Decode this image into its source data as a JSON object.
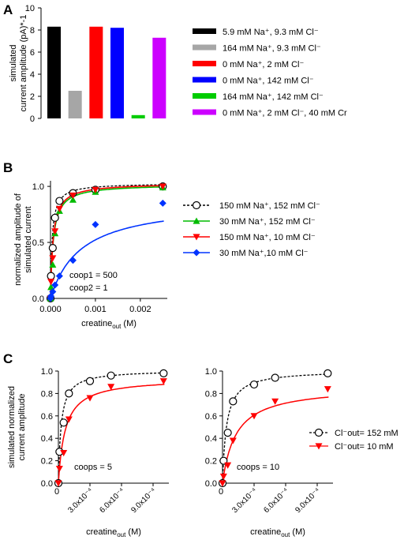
{
  "panels": {
    "a": {
      "letter": "A"
    },
    "b": {
      "letter": "B",
      "annotations": [
        "coop1 = 500",
        "coop2 = 1"
      ]
    },
    "c": {
      "letter": "C",
      "annotations": [
        "coops = 5",
        "coops = 10"
      ]
    }
  },
  "chart_data": [
    {
      "panel": "A",
      "type": "bar",
      "ylabel": [
        "simulated",
        "current amplitude (pA)*-1"
      ],
      "ylim": [
        0,
        10
      ],
      "yticks": [
        0,
        2,
        4,
        6,
        8,
        10
      ],
      "legend_position": "right",
      "series": [
        {
          "name": "5.9 mM Na⁺, 9.3 mM Cl⁻",
          "value": 8.3,
          "color": "#000000"
        },
        {
          "name": "164 mM Na⁺, 9.3 mM Cl⁻",
          "value": 2.5,
          "color": "#a6a6a6"
        },
        {
          "name": "0 mM Na⁺, 2 mM Cl⁻",
          "value": 8.3,
          "color": "#ff0000"
        },
        {
          "name": "0 mM Na⁺, 142 mM Cl⁻",
          "value": 8.2,
          "color": "#0000ff"
        },
        {
          "name": "164 mM Na⁺, 142 mM Cl⁻",
          "value": 0.3,
          "color": "#00cc00"
        },
        {
          "name": "0 mM Na⁺, 2 mM Cl⁻, 40 mM Cr",
          "value": 7.3,
          "color": "#cc00ff"
        }
      ]
    },
    {
      "panel": "B",
      "type": "line",
      "xlabel": "creatine_out (M)",
      "ylabel": [
        "normalized amplitude of",
        "simulated current"
      ],
      "xlim": [
        0,
        0.0026
      ],
      "ylim": [
        0,
        1.05
      ],
      "xticks": [
        0,
        0.001,
        0.002
      ],
      "xtick_labels": [
        "0.000",
        "0.001",
        "0.002"
      ],
      "yticks": [
        0,
        0.5,
        1.0
      ],
      "ytick_labels": [
        "0.0",
        "0.5",
        "1.0"
      ],
      "legend_position": "right",
      "series": [
        {
          "name": "150 mM Na⁺, 152 mM Cl⁻",
          "color": "#000000",
          "marker": "open-circle",
          "dashed": true,
          "x": [
            0,
            1e-05,
            5e-05,
            0.0001,
            0.0002,
            0.0005,
            0.001,
            0.0025
          ],
          "y": [
            0,
            0.2,
            0.45,
            0.72,
            0.87,
            0.94,
            0.97,
            1.0
          ]
        },
        {
          "name": "30 mM Na⁺, 152 mM Cl⁻",
          "color": "#00bb00",
          "marker": "triangle-up",
          "dashed": false,
          "x": [
            0,
            1e-05,
            5e-05,
            0.0001,
            0.0002,
            0.0005,
            0.001,
            0.0025
          ],
          "y": [
            0,
            0.1,
            0.3,
            0.58,
            0.78,
            0.88,
            0.95,
            0.99
          ]
        },
        {
          "name": "150 mM Na⁺, 10 mM Cl⁻",
          "color": "#ff0000",
          "marker": "triangle-down",
          "dashed": false,
          "x": [
            0,
            1e-05,
            5e-05,
            0.0001,
            0.0002,
            0.0005,
            0.001,
            0.0025
          ],
          "y": [
            0,
            0.15,
            0.36,
            0.6,
            0.8,
            0.92,
            0.97,
            1.0
          ]
        },
        {
          "name": "30 mM Na⁺,10 mM Cl⁻",
          "color": "#0033ff",
          "marker": "diamond",
          "dashed": false,
          "x": [
            0,
            1e-05,
            5e-05,
            0.0001,
            0.0002,
            0.0005,
            0.001,
            0.0025
          ],
          "y": [
            0,
            0.02,
            0.06,
            0.12,
            0.2,
            0.34,
            0.66,
            0.85
          ]
        }
      ]
    },
    {
      "panel": "C-left",
      "type": "line",
      "xlabel": "creatine_out (M)",
      "ylabel": [
        "simulated normalized",
        "current amplitude"
      ],
      "xlim": [
        0,
        0.00105
      ],
      "ylim": [
        0,
        1.0
      ],
      "xticks": [
        0.0003,
        0.0006,
        0.0009
      ],
      "xtick_labels": [
        "3.0x10⁻⁴",
        "6.0x10⁻⁴",
        "9.0x10⁻⁴"
      ],
      "yticks": [
        0,
        0.2,
        0.4,
        0.6,
        0.8,
        1.0
      ],
      "ytick_labels": [
        "0.0",
        "0.2",
        "0.4",
        "0.6",
        "0.8",
        "1.0"
      ],
      "series": [
        {
          "name": "Cl⁻out= 152 mM",
          "color": "#000000",
          "marker": "open-circle",
          "dashed": true,
          "x": [
            0,
            1e-05,
            5e-05,
            0.0001,
            0.0003,
            0.0005,
            0.001
          ],
          "y": [
            0,
            0.28,
            0.54,
            0.8,
            0.91,
            0.96,
            0.98
          ]
        },
        {
          "name": "Cl⁻out= 10 mM",
          "color": "#ff0000",
          "marker": "triangle-down",
          "dashed": false,
          "x": [
            0,
            1e-05,
            5e-05,
            0.0001,
            0.0003,
            0.0005,
            0.001
          ],
          "y": [
            0,
            0.13,
            0.27,
            0.57,
            0.76,
            0.86,
            0.91
          ]
        }
      ]
    },
    {
      "panel": "C-right",
      "type": "line",
      "xlabel": "creatine_out (M)",
      "xlim": [
        0,
        0.00105
      ],
      "ylim": [
        0,
        1.0
      ],
      "xticks": [
        0.0003,
        0.0006,
        0.0009
      ],
      "xtick_labels": [
        "3.0x10⁻⁴",
        "6.0x10⁻⁴",
        "9.0x10⁻⁴"
      ],
      "yticks": [
        0,
        0.2,
        0.4,
        0.6,
        0.8,
        1.0
      ],
      "ytick_labels": [
        "0.0",
        "0.2",
        "0.4",
        "0.6",
        "0.8",
        "1.0"
      ],
      "legend_position": "right",
      "series": [
        {
          "name": "Cl⁻out= 152 mM",
          "color": "#000000",
          "marker": "open-circle",
          "dashed": true,
          "x": [
            0,
            1e-05,
            5e-05,
            0.0001,
            0.0003,
            0.0005,
            0.001
          ],
          "y": [
            0,
            0.2,
            0.45,
            0.73,
            0.88,
            0.94,
            0.98
          ]
        },
        {
          "name": "Cl⁻out= 10 mM",
          "color": "#ff0000",
          "marker": "triangle-down",
          "dashed": false,
          "x": [
            0,
            1e-05,
            5e-05,
            0.0001,
            0.0003,
            0.0005,
            0.001
          ],
          "y": [
            0,
            0.06,
            0.16,
            0.38,
            0.6,
            0.73,
            0.84
          ]
        }
      ]
    }
  ]
}
